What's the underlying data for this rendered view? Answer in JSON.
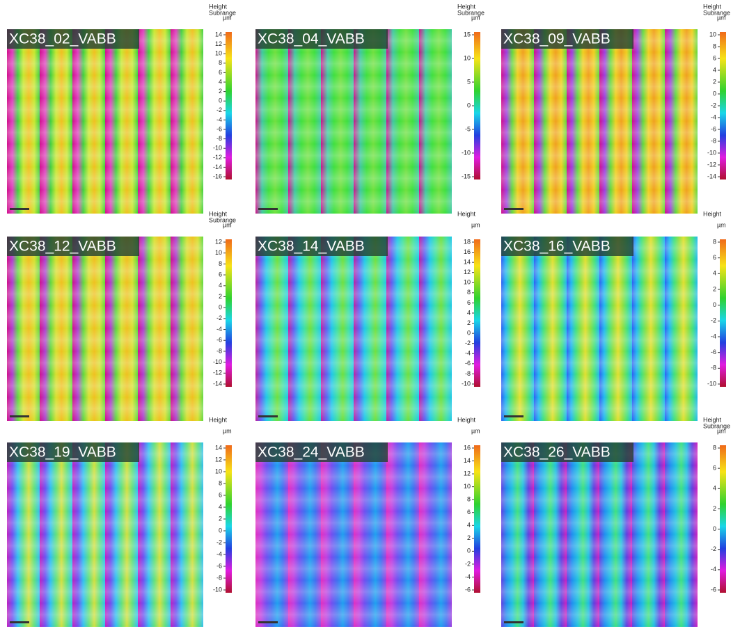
{
  "panels": [
    {
      "label": "XC38_02_VABB",
      "colorbar": {
        "title": "Height",
        "subtitle": "Subrange",
        "unit": "µm",
        "ticks": [
          14,
          12,
          10,
          8,
          6,
          4,
          2,
          0,
          -2,
          -4,
          -6,
          -8,
          -10,
          -12,
          -14,
          -16
        ]
      }
    },
    {
      "label": "XC38_04_VABB",
      "colorbar": {
        "title": "Height",
        "subtitle": "Subrange",
        "unit": "µm",
        "ticks": [
          15,
          10,
          5,
          0,
          -5,
          -10,
          -15
        ]
      }
    },
    {
      "label": "XC38_09_VABB",
      "colorbar": {
        "title": "Height",
        "subtitle": "Subrange",
        "unit": "µm",
        "ticks": [
          10,
          8,
          6,
          4,
          2,
          0,
          -2,
          -4,
          -6,
          -8,
          -10,
          -12,
          -14
        ]
      }
    },
    {
      "label": "XC38_12_VABB",
      "colorbar": {
        "title": "Height",
        "subtitle": "Subrange",
        "unit": "µm",
        "ticks": [
          12,
          10,
          8,
          6,
          4,
          2,
          0,
          -2,
          -4,
          -6,
          -8,
          -10,
          -12,
          -14
        ]
      }
    },
    {
      "label": "XC38_14_VABB",
      "colorbar": {
        "title": "Height",
        "unit": "µm",
        "ticks": [
          18,
          16,
          14,
          12,
          10,
          8,
          6,
          4,
          2,
          0,
          -2,
          -4,
          -6,
          -8,
          -10
        ]
      }
    },
    {
      "label": "XC38_16_VABB",
      "colorbar": {
        "title": "Height",
        "unit": "µm",
        "ticks": [
          8,
          6,
          4,
          2,
          0,
          -2,
          -4,
          -6,
          -8,
          -10
        ]
      }
    },
    {
      "label": "XC38_19_VABB",
      "colorbar": {
        "title": "Height",
        "unit": "µm",
        "ticks": [
          14,
          12,
          10,
          8,
          6,
          4,
          2,
          0,
          -2,
          -4,
          -6,
          -8,
          -10
        ]
      }
    },
    {
      "label": "XC38_24_VABB",
      "colorbar": {
        "title": "Height",
        "unit": "µm",
        "ticks": [
          16,
          14,
          12,
          10,
          8,
          6,
          4,
          2,
          0,
          -2,
          -4,
          -6
        ]
      }
    },
    {
      "label": "XC38_26_VABB",
      "colorbar": {
        "title": "Height",
        "subtitle": "Subrange",
        "unit": "µm",
        "ticks": [
          8,
          6,
          4,
          2,
          0,
          -2,
          -4,
          -6
        ]
      }
    }
  ]
}
